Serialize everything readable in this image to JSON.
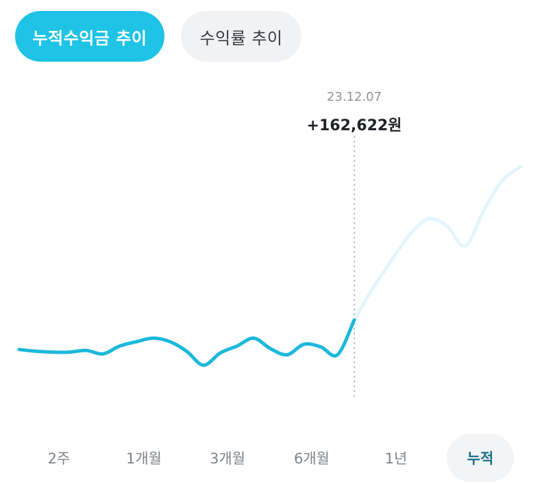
{
  "tabs": {
    "cumulative_profit": "누적수익금 추이",
    "return_rate": "수익률 추이"
  },
  "tooltip": {
    "date": "23.12.07",
    "value": "+162,622원"
  },
  "periods": [
    "2주",
    "1개월",
    "3개월",
    "6개월",
    "1년",
    "누적"
  ],
  "selected_period": "누적",
  "colors": {
    "accent": "#1ec3e6",
    "line": "#1cb8dc",
    "future_line": "#e3f5fb",
    "cursor": "#bfc4c8"
  },
  "chart_data": {
    "type": "line",
    "series": [
      {
        "values": [
          0.08,
          0.06,
          0.05,
          0.05,
          0.07,
          0.03,
          0.12,
          0.17,
          0.21,
          0.17,
          0.06,
          -0.1,
          0.04,
          0.12,
          0.21,
          0.09,
          0.02,
          0.14,
          0.11,
          0.02,
          0.42
        ],
        "style": "solid"
      },
      {
        "values": [
          0.42,
          0.78,
          1.1,
          1.4,
          1.58,
          1.5,
          1.27,
          1.68,
          2.02,
          2.18
        ],
        "style": "faded"
      }
    ],
    "cursor_index": 20,
    "cursor_label": "23.12.07",
    "cursor_value": "+162,622원"
  }
}
